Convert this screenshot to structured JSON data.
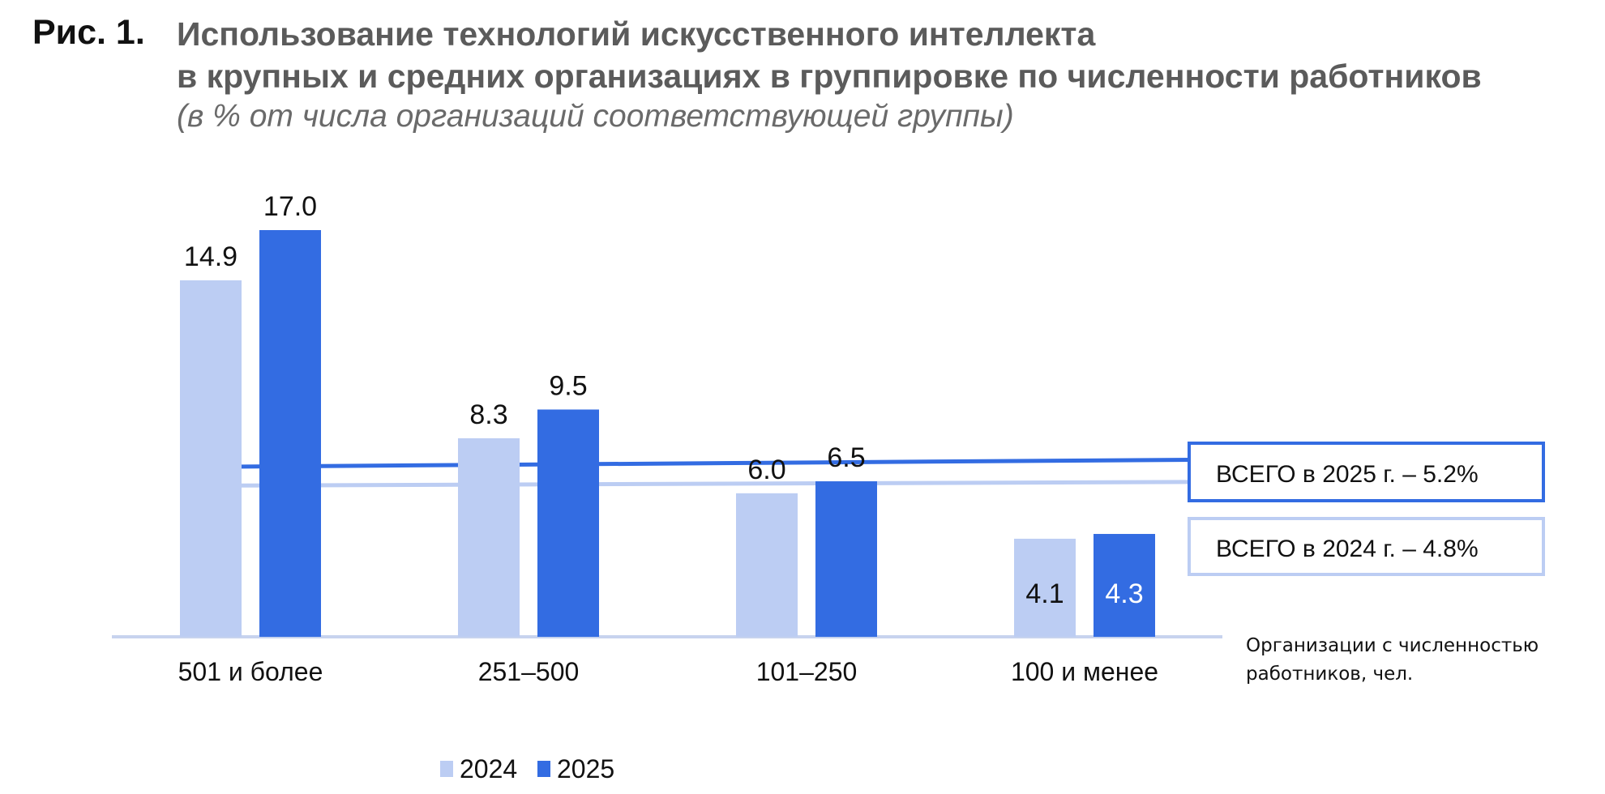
{
  "figure": {
    "label": "Рис. 1.",
    "title_line1": "Использование технологий искусственного интеллекта",
    "title_line2": "в крупных и средних организациях в группировке по численности работников",
    "subtitle": "(в % от числа организаций соответствующей группы)"
  },
  "chart_data": {
    "type": "bar",
    "categories": [
      "501 и более",
      "251–500",
      "101–250",
      "100 и менее"
    ],
    "series": [
      {
        "name": "2024",
        "values": [
          14.9,
          8.3,
          6.0,
          4.1
        ],
        "labels": [
          "14.9",
          "8.3",
          "6.0",
          "4.1"
        ],
        "color": "#bccdf3"
      },
      {
        "name": "2025",
        "values": [
          17.0,
          9.5,
          6.5,
          4.3
        ],
        "labels": [
          "17.0",
          "9.5",
          "6.5",
          "4.3"
        ],
        "color": "#336ce2"
      }
    ],
    "reference_lines": [
      {
        "series": "2025",
        "value": 5.2,
        "label": "ВСЕГО в 2025 г. – 5.2%",
        "color": "#336ce2"
      },
      {
        "series": "2024",
        "value": 4.8,
        "label": "ВСЕГО в 2024 г. – 4.8%",
        "color": "#bccdf3"
      }
    ],
    "x_axis_note_line1": "Организации с численностью",
    "x_axis_note_line2": "работников, чел.",
    "ylim": [
      0,
      17.0
    ],
    "grid": false,
    "legend_position": "bottom-center"
  }
}
